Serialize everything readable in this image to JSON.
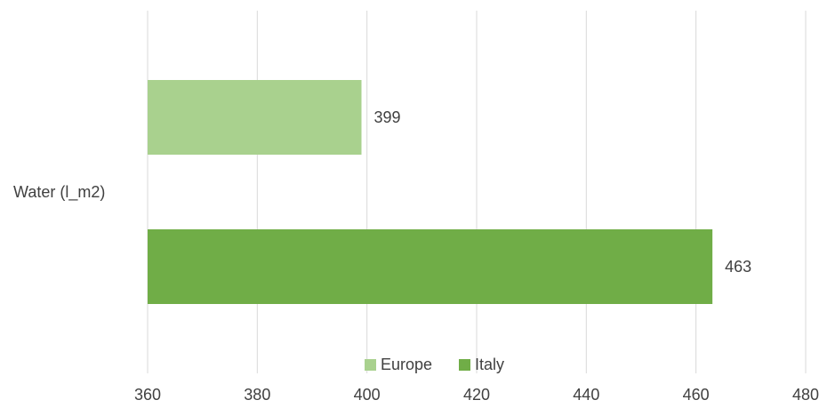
{
  "chart_data": {
    "type": "bar",
    "orientation": "horizontal",
    "categories": [
      "Water (l_m2)"
    ],
    "series": [
      {
        "name": "Europe",
        "values": [
          399
        ],
        "color": "#a9d18e"
      },
      {
        "name": "Italy",
        "values": [
          463
        ],
        "color": "#70ad47"
      }
    ],
    "xlim": [
      360,
      480
    ],
    "x_ticks": [
      360,
      380,
      400,
      420,
      440,
      460,
      480
    ],
    "data_labels": [
      "399",
      "463"
    ],
    "legend": {
      "placement": "bottom",
      "entries": [
        "Europe",
        "Italy"
      ]
    },
    "grid": "vertical",
    "title": "",
    "xlabel": "",
    "ylabel": ""
  }
}
